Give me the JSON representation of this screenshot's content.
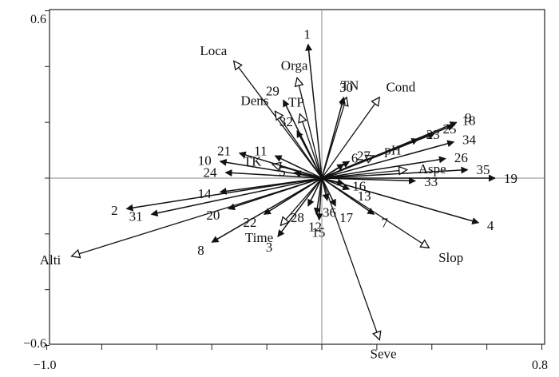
{
  "chart_data": {
    "type": "biplot",
    "x_ticks": [
      "−1.0",
      "0.8"
    ],
    "y_ticks": [
      "0.6",
      "−0.6"
    ],
    "xlim": [
      -1.0,
      0.8
    ],
    "ylim": [
      -0.6,
      0.6
    ],
    "species": [
      {
        "label": "1",
        "x": -0.05,
        "y": 0.48
      },
      {
        "label": "2",
        "x": -0.71,
        "y": -0.11
      },
      {
        "label": "3",
        "x": -0.16,
        "y": -0.21
      },
      {
        "label": "4",
        "x": 0.57,
        "y": -0.16
      },
      {
        "label": "5",
        "x": -0.1,
        "y": 0.02
      },
      {
        "label": "6",
        "x": 0.08,
        "y": 0.05
      },
      {
        "label": "7",
        "x": 0.19,
        "y": -0.13
      },
      {
        "label": "8",
        "x": -0.4,
        "y": -0.23
      },
      {
        "label": "9",
        "x": 0.49,
        "y": 0.2
      },
      {
        "label": "10",
        "x": -0.37,
        "y": 0.06
      },
      {
        "label": "11",
        "x": -0.17,
        "y": 0.08
      },
      {
        "label": "12",
        "x": -0.02,
        "y": -0.13
      },
      {
        "label": "13",
        "x": 0.1,
        "y": -0.04
      },
      {
        "label": "14",
        "x": -0.37,
        "y": -0.05
      },
      {
        "label": "15",
        "x": -0.01,
        "y": -0.15
      },
      {
        "label": "16",
        "x": 0.08,
        "y": -0.02
      },
      {
        "label": "17",
        "x": 0.05,
        "y": -0.1
      },
      {
        "label": "18",
        "x": 0.48,
        "y": 0.19
      },
      {
        "label": "19",
        "x": 0.63,
        "y": 0.0
      },
      {
        "label": "20",
        "x": -0.34,
        "y": -0.11
      },
      {
        "label": "21",
        "x": -0.3,
        "y": 0.09
      },
      {
        "label": "22",
        "x": -0.21,
        "y": -0.13
      },
      {
        "label": "23",
        "x": 0.35,
        "y": 0.14
      },
      {
        "label": "24",
        "x": -0.35,
        "y": 0.02
      },
      {
        "label": "25",
        "x": 0.41,
        "y": 0.16
      },
      {
        "label": "26",
        "x": 0.45,
        "y": 0.07
      },
      {
        "label": "27",
        "x": 0.1,
        "y": 0.06
      },
      {
        "label": "28",
        "x": -0.05,
        "y": -0.1
      },
      {
        "label": "29",
        "x": -0.14,
        "y": 0.28
      },
      {
        "label": "30",
        "x": 0.08,
        "y": 0.29
      },
      {
        "label": "31",
        "x": -0.62,
        "y": -0.13
      },
      {
        "label": "32",
        "x": -0.09,
        "y": 0.17
      },
      {
        "label": "33",
        "x": 0.34,
        "y": -0.01
      },
      {
        "label": "34",
        "x": 0.48,
        "y": 0.13
      },
      {
        "label": "35",
        "x": 0.53,
        "y": 0.03
      },
      {
        "label": "36",
        "x": 0.02,
        "y": -0.08
      }
    ],
    "environment": [
      {
        "label": "Loca",
        "x": -0.32,
        "y": 0.42
      },
      {
        "label": "Orga",
        "x": -0.09,
        "y": 0.36
      },
      {
        "label": "TN",
        "x": 0.09,
        "y": 0.29
      },
      {
        "label": "Cond",
        "x": 0.21,
        "y": 0.29
      },
      {
        "label": "TP",
        "x": -0.08,
        "y": 0.23
      },
      {
        "label": "Dens",
        "x": -0.17,
        "y": 0.24
      },
      {
        "label": "TK",
        "x": -0.18,
        "y": 0.05
      },
      {
        "label": "pH",
        "x": 0.19,
        "y": 0.08
      },
      {
        "label": "Aspe",
        "x": 0.31,
        "y": 0.03
      },
      {
        "label": "Alti",
        "x": -0.91,
        "y": -0.28
      },
      {
        "label": "Time",
        "x": -0.15,
        "y": -0.17
      },
      {
        "label": "Slop",
        "x": 0.39,
        "y": -0.25
      },
      {
        "label": "Seve",
        "x": 0.21,
        "y": -0.58
      }
    ]
  }
}
